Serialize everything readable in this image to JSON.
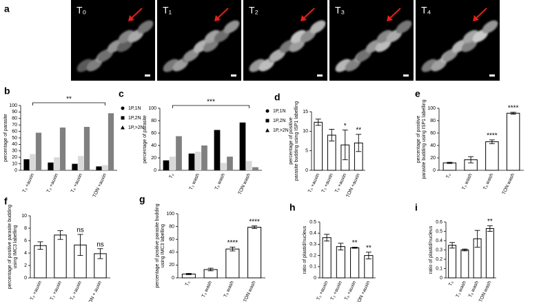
{
  "panel_a": {
    "label": "a",
    "frames": [
      "T₀",
      "T₁",
      "T₂",
      "T₃",
      "T₄"
    ]
  },
  "chart_data": [
    {
      "type": "bar",
      "panel": "b",
      "y_label": [
        "percentage of parasite"
      ],
      "categories": [
        "T₀ +auxin",
        "T₃ +auxin",
        "T₆ +auxin",
        "TON +auxin"
      ],
      "series": [
        {
          "name": "1P,1N",
          "color": "#000000",
          "marker": "circle",
          "values": [
            17,
            12,
            10,
            6
          ]
        },
        {
          "name": "1P,2N",
          "color": "#d9d9d9",
          "marker": "square",
          "values": [
            25,
            20,
            22,
            8
          ]
        },
        {
          "name": "1P,>2N",
          "color": "#808080",
          "marker": "triangle",
          "values": [
            58,
            66,
            67,
            88
          ]
        }
      ],
      "ylim": [
        0,
        100
      ],
      "yticks": [
        0,
        10,
        20,
        30,
        40,
        50,
        60,
        70,
        80,
        90,
        100
      ],
      "bracket_label": "**",
      "legend": "right"
    },
    {
      "type": "bar",
      "panel": "c",
      "y_label": [
        "percentage of parasite"
      ],
      "categories": [
        "T₀",
        "T₃ wash",
        "T₆ wash",
        "TON wash"
      ],
      "series": [
        {
          "name": "1P,1N",
          "color": "#000000",
          "marker": "circle",
          "values": [
            16,
            27,
            65,
            77
          ]
        },
        {
          "name": "1P,2N",
          "color": "#d9d9d9",
          "marker": "square",
          "values": [
            22,
            30,
            12,
            15
          ]
        },
        {
          "name": "1P,>2N",
          "color": "#808080",
          "marker": "triangle",
          "values": [
            55,
            40,
            22,
            5
          ]
        }
      ],
      "ylim": [
        0,
        100
      ],
      "yticks": [
        0,
        20,
        40,
        60,
        80,
        100
      ],
      "bracket_label": "***",
      "legend": "right"
    },
    {
      "type": "bar",
      "panel": "d",
      "y_label": [
        "percentage of positive",
        "parasite budding using ISP1 labelling"
      ],
      "categories": [
        "T₀ +auxin",
        "T₃ +auxin",
        "T₆ +auxin",
        "TON +auxin"
      ],
      "values": [
        12.3,
        9.0,
        6.5,
        7.0
      ],
      "errors": [
        0.8,
        1.5,
        3.8,
        2.2
      ],
      "annotations": [
        null,
        null,
        "*",
        "**"
      ],
      "color": "#ffffff",
      "ylim": [
        0,
        15
      ],
      "yticks": [
        0,
        5,
        10,
        15
      ]
    },
    {
      "type": "bar",
      "panel": "e",
      "y_label": [
        "percentage of positive",
        "parasite budding using ISP1 labelling"
      ],
      "categories": [
        "T₀",
        "T₃ wash",
        "T₆ wash",
        "TON wash"
      ],
      "values": [
        12,
        17,
        46,
        92
      ],
      "errors": [
        1,
        5,
        3,
        1.5
      ],
      "annotations": [
        null,
        null,
        "****",
        "****"
      ],
      "color": "#ffffff",
      "ylim": [
        0,
        100
      ],
      "yticks": [
        0,
        20,
        40,
        60,
        80,
        100
      ]
    },
    {
      "type": "bar",
      "panel": "f",
      "y_label": [
        "percentage of positive parasite budding",
        "using IMC3 labelling"
      ],
      "categories": [
        "T₀ +auxin",
        "T₃ +auxin",
        "T₆ +auxin",
        "T ON + auxin"
      ],
      "values": [
        5.2,
        6.9,
        5.3,
        3.9
      ],
      "errors": [
        0.6,
        0.7,
        1.7,
        0.8
      ],
      "annotations": [
        null,
        null,
        "ns",
        "ns"
      ],
      "color": "#ffffff",
      "ylim": [
        0,
        10
      ],
      "yticks": [
        0,
        2,
        4,
        6,
        8,
        10
      ]
    },
    {
      "type": "bar",
      "panel": "g",
      "y_label": [
        "percentage of positive parasite budding",
        "using IMC3 labelling"
      ],
      "categories": [
        "T₀",
        "T₃ wash",
        "T₆ wash",
        "TON wash"
      ],
      "values": [
        6,
        13,
        45,
        79
      ],
      "errors": [
        1,
        2,
        3,
        2
      ],
      "annotations": [
        null,
        null,
        "****",
        "****"
      ],
      "color": "#ffffff",
      "ylim": [
        0,
        100
      ],
      "yticks": [
        0,
        20,
        40,
        60,
        80,
        100
      ]
    },
    {
      "type": "bar",
      "panel": "h",
      "y_label": [
        "ratio of plastid/nucleus"
      ],
      "categories": [
        "T₀ +auxin",
        "T₃ +auxin",
        "T₆ +auxin",
        "TON +auxin"
      ],
      "values": [
        0.36,
        0.28,
        0.27,
        0.2
      ],
      "errors": [
        0.03,
        0.03,
        0.005,
        0.03
      ],
      "annotations": [
        null,
        null,
        "**",
        "**"
      ],
      "color": "#ffffff",
      "ylim": [
        0,
        0.5
      ],
      "yticks": [
        0,
        0.1,
        0.2,
        0.3,
        0.4,
        0.5
      ]
    },
    {
      "type": "bar",
      "panel": "i",
      "y_label": [
        "ratio of plastid/nucleus"
      ],
      "categories": [
        "T₀",
        "T₃ wash",
        "T₆ wash",
        "TON wash"
      ],
      "values": [
        0.35,
        0.3,
        0.42,
        0.53
      ],
      "errors": [
        0.03,
        0.01,
        0.09,
        0.03
      ],
      "annotations": [
        null,
        null,
        null,
        "**"
      ],
      "color": "#ffffff",
      "ylim": [
        0,
        0.6
      ],
      "yticks": [
        0,
        0.1,
        0.2,
        0.3,
        0.4,
        0.5,
        0.6
      ]
    }
  ]
}
